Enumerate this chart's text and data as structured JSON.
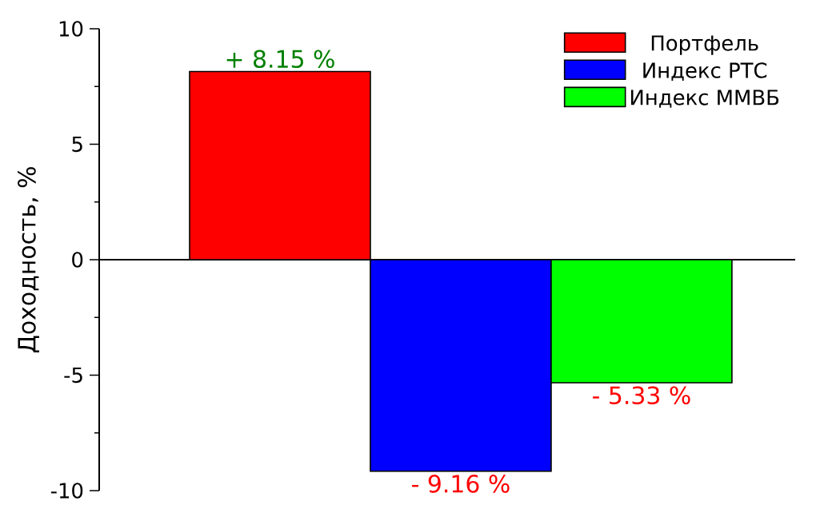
{
  "chart_data": {
    "type": "bar",
    "ylabel": "Доходность, %",
    "categories": [
      null
    ],
    "ylim": [
      -10,
      10
    ],
    "yticks": [
      -10,
      -5,
      0,
      5,
      10
    ],
    "legend": "top right",
    "series": [
      {
        "name": "Портфель",
        "color": "#ff0000",
        "values": [
          8.15
        ],
        "value_labels": [
          "+ 8.15 %"
        ]
      },
      {
        "name": "Индекс РТС",
        "color": "#0000ff",
        "values": [
          -9.16
        ],
        "value_labels": [
          "- 9.16 %"
        ]
      },
      {
        "name": "Индекс ММВБ",
        "color": "#00ff00",
        "values": [
          -5.33
        ],
        "value_labels": [
          "- 5.33 %"
        ]
      }
    ]
  }
}
